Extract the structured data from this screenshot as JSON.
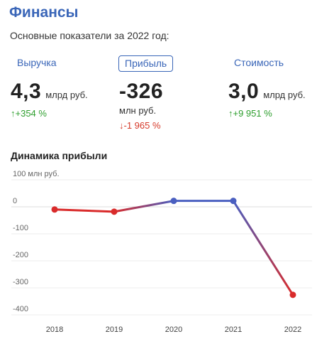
{
  "header": {
    "title": "Финансы",
    "subtitle": "Основные показатели за 2022 год:"
  },
  "tabs": [
    {
      "label": "Выручка",
      "active": false
    },
    {
      "label": "Прибыль",
      "active": true
    },
    {
      "label": "Стоимость",
      "active": false
    }
  ],
  "metrics": [
    {
      "value": "4,3",
      "unit": "млрд руб.",
      "change": "↑+354 %",
      "trend": "up"
    },
    {
      "value": "-326",
      "unit": "млн руб.",
      "change": "↓-1 965 %",
      "trend": "down"
    },
    {
      "value": "3,0",
      "unit": "млрд руб.",
      "change": "↑+9 951 %",
      "trend": "up"
    }
  ],
  "colors": {
    "accent": "#3a66b8",
    "up": "#2e9e2e",
    "down": "#d63a2a",
    "line_positive": "#4a5fc0",
    "line_negative": "#d92b2b"
  },
  "chart_data": {
    "type": "line",
    "title": "Динамика прибыли",
    "ylabel": "",
    "y_unit_label": "100 млн руб.",
    "x": [
      "2018",
      "2019",
      "2020",
      "2021",
      "2022"
    ],
    "series": [
      {
        "values": [
          -10,
          -18,
          22,
          22,
          -326
        ]
      }
    ],
    "ylim": [
      -400,
      100
    ],
    "yticks": [
      {
        "value": 100,
        "label": "100 млн руб."
      },
      {
        "value": 0,
        "label": "0"
      },
      {
        "value": -100,
        "label": "-100"
      },
      {
        "value": -200,
        "label": "-200"
      },
      {
        "value": -300,
        "label": "-300"
      },
      {
        "value": -400,
        "label": "-400"
      }
    ],
    "grid": true
  }
}
